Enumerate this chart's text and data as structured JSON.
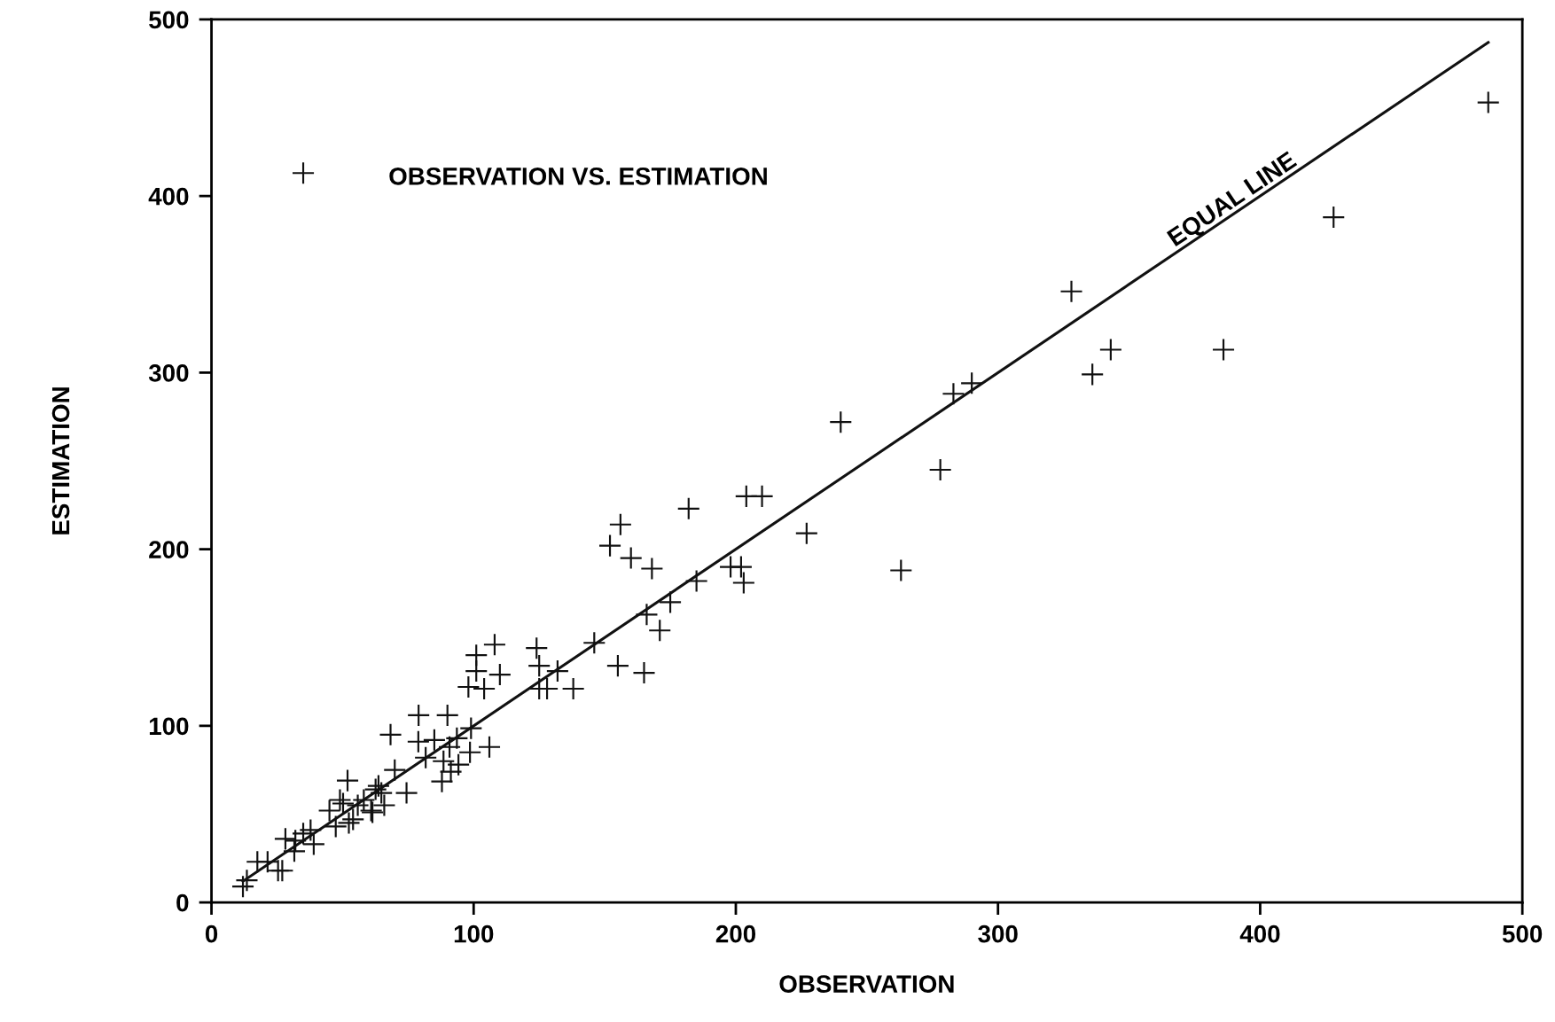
{
  "chart_data": {
    "type": "scatter",
    "xlabel": "OBSERVATION",
    "ylabel": "ESTIMATION",
    "xlim": [
      0,
      500
    ],
    "ylim": [
      0,
      500
    ],
    "xticks": [
      0,
      100,
      200,
      300,
      400,
      500
    ],
    "yticks": [
      0,
      100,
      200,
      300,
      400,
      500
    ],
    "grid": false,
    "marker": "cross",
    "annotations": [
      "OBSERVATION VS. ESTIMATION",
      {
        "text": "EQUAL LINE",
        "x": 392,
        "y": 392
      }
    ],
    "series": [
      {
        "type": "scatter",
        "color": "#111111",
        "x": [
          12,
          13.5,
          17.5,
          21.4,
          25.4,
          27,
          28.2,
          31.6,
          32,
          35,
          37.8,
          39,
          45,
          47.4,
          49,
          50.2,
          51.9,
          52.4,
          54,
          55.8,
          58.1,
          60.9,
          61.4,
          62.6,
          63.7,
          64.8,
          65.9,
          68.3,
          69.9,
          74.4,
          78.9,
          79,
          81.7,
          85,
          87.9,
          88.5,
          90,
          90.8,
          91.3,
          93.6,
          94.2,
          98,
          98.6,
          99,
          101,
          101,
          104,
          106,
          108,
          110,
          124,
          125,
          125,
          128,
          132,
          138,
          146,
          152,
          155,
          156,
          160,
          165,
          166,
          168,
          171,
          175,
          182,
          185,
          198,
          202,
          203,
          204,
          210,
          227,
          240,
          263,
          278,
          283,
          290,
          328,
          336,
          343,
          386,
          428,
          487,
          35
        ],
        "values": [
          9,
          12.5,
          23,
          23,
          18,
          18,
          36,
          29,
          35,
          39,
          41,
          33,
          52,
          43,
          58,
          56,
          69,
          45,
          47,
          55,
          58,
          52,
          51,
          64,
          66,
          62,
          55,
          95,
          75,
          62,
          91,
          106,
          82,
          92,
          68.5,
          80,
          106,
          88,
          74,
          93,
          78,
          122,
          85,
          98.6,
          140,
          131,
          121,
          88,
          146,
          129,
          144,
          134,
          121,
          121,
          131,
          121,
          147,
          202,
          134,
          214,
          195,
          130,
          163,
          189,
          154,
          170,
          223,
          182,
          190,
          190,
          181,
          230,
          230,
          209,
          272,
          188,
          245,
          288,
          294,
          346,
          299,
          313,
          313,
          388,
          453,
          413
        ]
      },
      {
        "type": "line",
        "marker": "none",
        "color": "#111111",
        "x": [
          12,
          487
        ],
        "values": [
          12,
          487
        ]
      }
    ]
  }
}
